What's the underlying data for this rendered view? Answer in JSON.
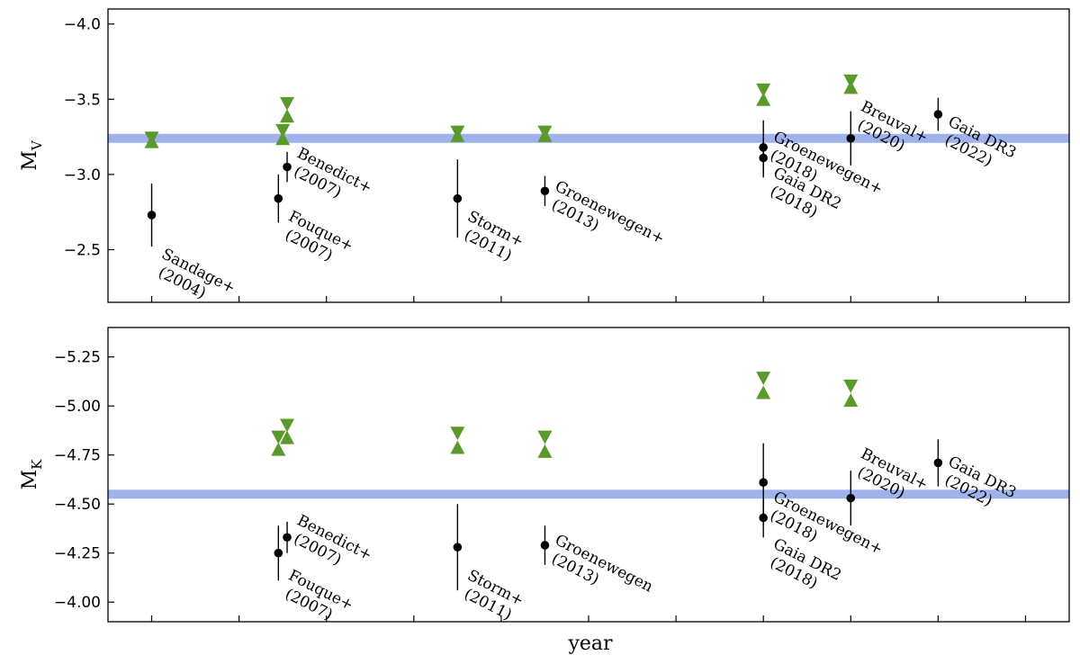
{
  "chart_data": [
    {
      "type": "scatter",
      "ylabel_main": "M",
      "ylabel_sub": "V",
      "ylim": [
        -2.15,
        -4.1
      ],
      "yticks": [
        -4.0,
        -3.5,
        -3.0,
        -2.5
      ],
      "ytick_labels": [
        "−4.0",
        "−3.5",
        "−3.0",
        "−2.5"
      ],
      "x_tick_positions": [
        2004,
        2006,
        2008,
        2010,
        2012,
        2014,
        2016,
        2018,
        2020,
        2022,
        2024
      ],
      "band": {
        "value": -3.24,
        "color": "#9fb2ec"
      },
      "model_color": "#5a9a2a",
      "measurements": [
        {
          "x": 2004,
          "y": -2.73,
          "err": 0.21,
          "label_lines": [
            "Sandage+",
            "(2004)"
          ],
          "label_y": -2.45
        },
        {
          "x": 2006.9,
          "y": -2.84,
          "err": 0.16,
          "label_lines": [
            "Fouque+",
            "(2007)"
          ],
          "label_y": -2.7
        },
        {
          "x": 2007.1,
          "y": -3.05,
          "err": 0.1,
          "label_lines": [
            "Benedict+",
            "(2007)"
          ],
          "label_y": -3.12
        },
        {
          "x": 2011,
          "y": -2.84,
          "err": 0.26,
          "label_lines": [
            "Storm+",
            "(2011)"
          ],
          "label_y": -2.7
        },
        {
          "x": 2013,
          "y": -2.89,
          "err": 0.1,
          "label_lines": [
            "Groenewegen+",
            "(2013)"
          ],
          "label_y": -2.9
        },
        {
          "x": 2018,
          "y": -3.18,
          "err": 0.18,
          "label_lines": [
            "Groenewegen+",
            "(2018)"
          ],
          "label_y": -3.23
        },
        {
          "x": 2018,
          "y": -3.11,
          "err": 0.13,
          "label_lines": [
            "Gaia DR2",
            "(2018)"
          ],
          "label_y": -2.99
        },
        {
          "x": 2020,
          "y": -3.24,
          "err": 0.18,
          "label_lines": [
            "Breuval+",
            "(2020)"
          ],
          "label_y": -3.43
        },
        {
          "x": 2022,
          "y": -3.4,
          "err": 0.11,
          "label_lines": [
            "Gaia DR3",
            "(2022)"
          ],
          "label_y": -3.33
        }
      ],
      "model_points": [
        {
          "x": 2004,
          "kind": "down",
          "y": -3.24
        },
        {
          "x": 2004,
          "kind": "up",
          "y": -3.22
        },
        {
          "x": 2007,
          "kind": "down",
          "y": -3.29
        },
        {
          "x": 2007,
          "kind": "up",
          "y": -3.24
        },
        {
          "x": 2007.1,
          "kind": "down",
          "y": -3.47
        },
        {
          "x": 2007.1,
          "kind": "up",
          "y": -3.39
        },
        {
          "x": 2011,
          "kind": "down",
          "y": -3.28
        },
        {
          "x": 2011,
          "kind": "up",
          "y": -3.26
        },
        {
          "x": 2013,
          "kind": "down",
          "y": -3.28
        },
        {
          "x": 2013,
          "kind": "up",
          "y": -3.26
        },
        {
          "x": 2018,
          "kind": "down",
          "y": -3.56
        },
        {
          "x": 2018,
          "kind": "up",
          "y": -3.5
        },
        {
          "x": 2020,
          "kind": "down",
          "y": -3.62
        },
        {
          "x": 2020,
          "kind": "up",
          "y": -3.58
        }
      ]
    },
    {
      "type": "scatter",
      "ylabel_main": "M",
      "ylabel_sub": "K",
      "xlabel": "year",
      "ylim": [
        -3.9,
        -5.4
      ],
      "yticks": [
        -5.25,
        -5.0,
        -4.75,
        -4.5,
        -4.25,
        -4.0
      ],
      "ytick_labels": [
        "−5.25",
        "−5.00",
        "−4.75",
        "−4.50",
        "−4.25",
        "−4.00"
      ],
      "x_tick_positions": [
        2004,
        2006,
        2008,
        2010,
        2012,
        2014,
        2016,
        2018,
        2020,
        2022,
        2024
      ],
      "band": {
        "value": -4.55,
        "color": "#9fb2ec"
      },
      "model_color": "#5a9a2a",
      "measurements": [
        {
          "x": 2006.9,
          "y": -4.25,
          "err": 0.14,
          "label_lines": [
            "Fouque+",
            "(2007)"
          ],
          "label_y": -4.12
        },
        {
          "x": 2007.1,
          "y": -4.33,
          "err": 0.08,
          "label_lines": [
            "Benedict+",
            "(2007)"
          ],
          "label_y": -4.4
        },
        {
          "x": 2011,
          "y": -4.28,
          "err": 0.22,
          "label_lines": [
            "Storm+",
            "(2011)"
          ],
          "label_y": -4.12
        },
        {
          "x": 2013,
          "y": -4.29,
          "err": 0.1,
          "label_lines": [
            "Groenewegen",
            "(2013)"
          ],
          "label_y": -4.3
        },
        {
          "x": 2018,
          "y": -4.61,
          "err": 0.2,
          "label_lines": [
            "Groenewegen+",
            "(2018)"
          ],
          "label_y": -4.52
        },
        {
          "x": 2018,
          "y": -4.43,
          "err": 0.1,
          "label_lines": [
            "Gaia DR2",
            "(2018)"
          ],
          "label_y": -4.28
        },
        {
          "x": 2020,
          "y": -4.53,
          "err": 0.14,
          "label_lines": [
            "Breuval+",
            "(2020)"
          ],
          "label_y": -4.74
        },
        {
          "x": 2022,
          "y": -4.71,
          "err": 0.12,
          "label_lines": [
            "Gaia DR3",
            "(2022)"
          ],
          "label_y": -4.7
        }
      ],
      "model_points": [
        {
          "x": 2006.9,
          "kind": "down",
          "y": -4.84
        },
        {
          "x": 2006.9,
          "kind": "up",
          "y": -4.78
        },
        {
          "x": 2007.1,
          "kind": "down",
          "y": -4.9
        },
        {
          "x": 2007.1,
          "kind": "up",
          "y": -4.84
        },
        {
          "x": 2011,
          "kind": "down",
          "y": -4.86
        },
        {
          "x": 2011,
          "kind": "up",
          "y": -4.79
        },
        {
          "x": 2013,
          "kind": "down",
          "y": -4.84
        },
        {
          "x": 2013,
          "kind": "up",
          "y": -4.77
        },
        {
          "x": 2018,
          "kind": "down",
          "y": -5.14
        },
        {
          "x": 2018,
          "kind": "up",
          "y": -5.07
        },
        {
          "x": 2020,
          "kind": "down",
          "y": -5.1
        },
        {
          "x": 2020,
          "kind": "up",
          "y": -5.03
        }
      ]
    }
  ]
}
